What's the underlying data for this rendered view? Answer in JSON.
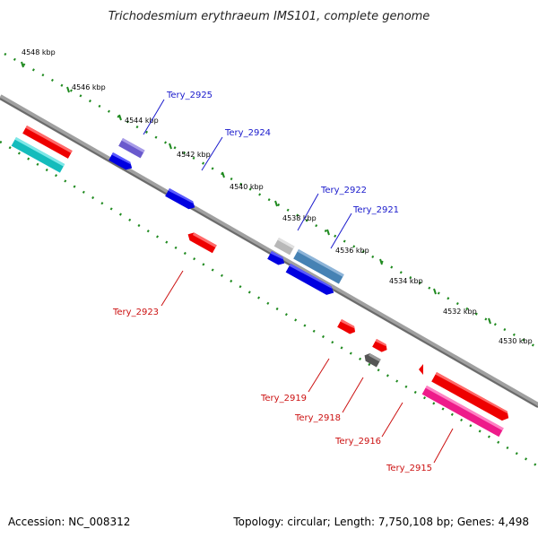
{
  "title": "Trichodesmium erythraeum IMS101, complete genome",
  "footer": {
    "accession": "Accession: NC_008312",
    "summary": "Topology: circular; Length: 7,750,108 bp; Genes: 4,498"
  },
  "colors": {
    "backbone": "#808080",
    "tick": "#1f8a1f",
    "label_forward": "#1a1acc",
    "label_reverse": "#cc1111"
  },
  "kbp_labels": [
    "4548 kbp",
    "4546 kbp",
    "4544 kbp",
    "4542 kbp",
    "4540 kbp",
    "4538 kbp",
    "4536 kbp",
    "4534 kbp",
    "4532 kbp",
    "4530 kbp"
  ],
  "genes": {
    "forward": [
      {
        "label": "Tery_2925"
      },
      {
        "label": "Tery_2924"
      },
      {
        "label": "Tery_2922"
      },
      {
        "label": "Tery_2921"
      }
    ],
    "reverse": [
      {
        "label": "Tery_2923"
      },
      {
        "label": "Tery_2919"
      },
      {
        "label": "Tery_2918"
      },
      {
        "label": "Tery_2916"
      },
      {
        "label": "Tery_2915"
      }
    ]
  }
}
